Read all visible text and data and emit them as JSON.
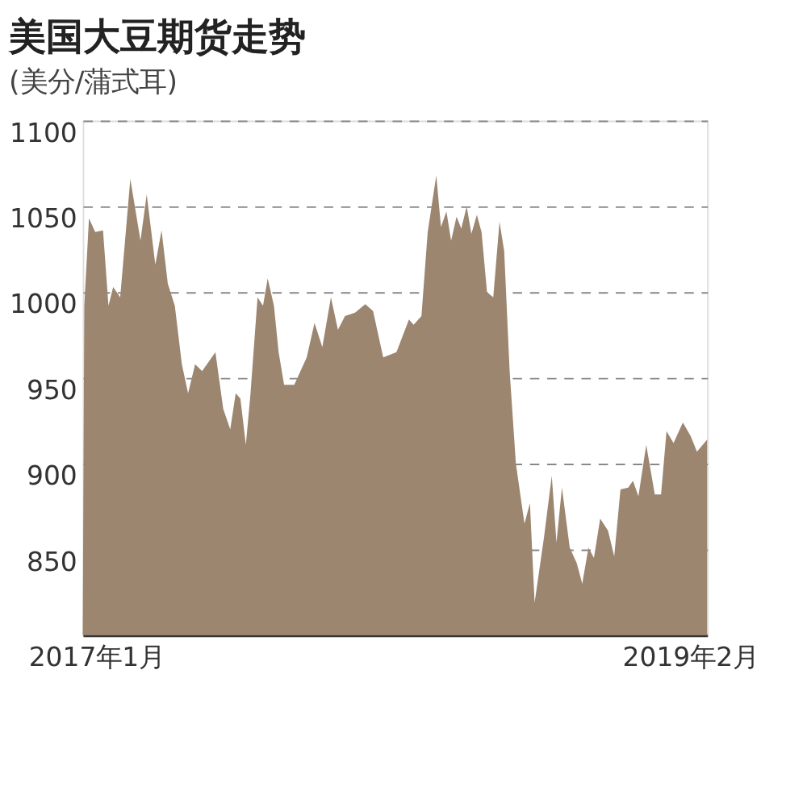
{
  "chart_data": {
    "type": "area",
    "title": "美国大豆期货走势",
    "subtitle": "(美分/蒲式耳)",
    "x": [
      "2016-12-15",
      "2016-12-17",
      "2016-12-23",
      "2016-12-31",
      "2017-01-10",
      "2017-01-17",
      "2017-01-23",
      "2017-02-01",
      "2017-02-14",
      "2017-02-27",
      "2017-03-07",
      "2017-03-18",
      "2017-03-26",
      "2017-04-03",
      "2017-04-12",
      "2017-04-21",
      "2017-04-29",
      "2017-05-08",
      "2017-05-17",
      "2017-06-03",
      "2017-06-13",
      "2017-06-22",
      "2017-06-29",
      "2017-07-05",
      "2017-07-12",
      "2017-07-18",
      "2017-07-27",
      "2017-08-03",
      "2017-08-09",
      "2017-08-17",
      "2017-08-23",
      "2017-08-30",
      "2017-09-12",
      "2017-09-28",
      "2017-10-08",
      "2017-10-18",
      "2017-10-29",
      "2017-11-07",
      "2017-11-16",
      "2017-11-29",
      "2017-12-12",
      "2017-12-22",
      "2018-01-04",
      "2018-01-21",
      "2018-02-06",
      "2018-02-12",
      "2018-02-22",
      "2018-03-02",
      "2018-03-13",
      "2018-03-19",
      "2018-03-26",
      "2018-04-01",
      "2018-04-08",
      "2018-04-14",
      "2018-04-21",
      "2018-04-27",
      "2018-05-04",
      "2018-05-10",
      "2018-05-17",
      "2018-05-25",
      "2018-06-02",
      "2018-06-08",
      "2018-06-15",
      "2018-06-23",
      "2018-07-04",
      "2018-07-11",
      "2018-07-17",
      "2018-07-29",
      "2018-08-08",
      "2018-08-14",
      "2018-08-21",
      "2018-08-31",
      "2018-09-09",
      "2018-09-16",
      "2018-09-24",
      "2018-10-01",
      "2018-10-09",
      "2018-10-19",
      "2018-10-27",
      "2018-11-04",
      "2018-11-14",
      "2018-11-20",
      "2018-11-27",
      "2018-12-07",
      "2018-12-18",
      "2018-12-26",
      "2019-01-02",
      "2019-01-11",
      "2019-01-23",
      "2019-02-02",
      "2019-02-10",
      "2019-02-23"
    ],
    "series": [
      {
        "color": "#9c8670",
        "values": [
          800,
          992,
          1043,
          1035,
          1036,
          992,
          1003,
          997,
          1066,
          1030,
          1057,
          1016,
          1036,
          1005,
          992,
          958,
          941,
          958,
          954,
          965,
          932,
          920,
          941,
          938,
          911,
          941,
          997,
          992,
          1008,
          992,
          965,
          946,
          946,
          962,
          982,
          968,
          997,
          978,
          986,
          988,
          993,
          989,
          962,
          965,
          984,
          981,
          986,
          1035,
          1068,
          1038,
          1047,
          1030,
          1044,
          1037,
          1050,
          1034,
          1045,
          1035,
          1000,
          997,
          1041,
          1024,
          954,
          900,
          865,
          877,
          819,
          857,
          893,
          854,
          886,
          851,
          842,
          830,
          851,
          845,
          868,
          861,
          846,
          885,
          886,
          890,
          881,
          911,
          882,
          882,
          919,
          912,
          924,
          916,
          907,
          914
        ]
      }
    ],
    "xlim": [
      "2016-12-15",
      "2019-02-23"
    ],
    "xticks": [
      {
        "value": "2017-01-01",
        "label": "2017年1月"
      },
      {
        "value": "2019-02-01",
        "label": "2019年2月"
      }
    ],
    "ylim": [
      800,
      1100
    ],
    "yticks": [
      850,
      900,
      950,
      1000,
      1050,
      1100
    ],
    "grid": "y",
    "line_style": "dashed"
  }
}
